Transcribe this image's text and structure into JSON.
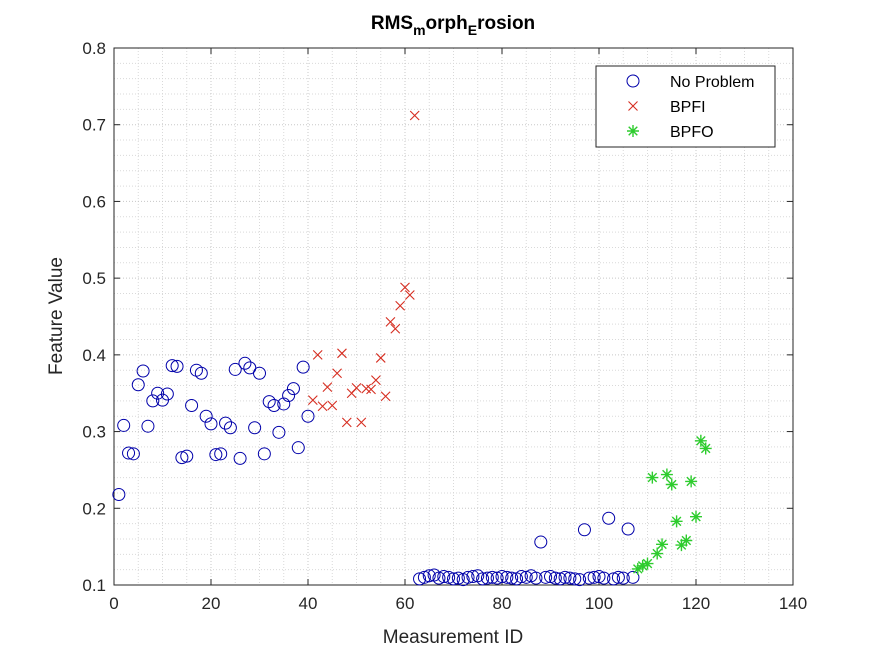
{
  "chart_data": {
    "type": "scatter",
    "title": "RMS_morph_Erosion",
    "title_parts": {
      "a": "RMS",
      "b": "m",
      "c": "orph",
      "d": "E",
      "e": "rosion"
    },
    "xlabel": "Measurement ID",
    "ylabel": "Feature Value",
    "xlim": [
      0,
      140
    ],
    "ylim": [
      0.1,
      0.8
    ],
    "xticks": [
      0,
      20,
      40,
      60,
      80,
      100,
      120,
      140
    ],
    "yticks": [
      0.1,
      0.2,
      0.3,
      0.4,
      0.5,
      0.6,
      0.7,
      0.8
    ],
    "xtick_labels": [
      "0",
      "20",
      "40",
      "60",
      "80",
      "100",
      "120",
      "140"
    ],
    "ytick_labels": [
      "0.1",
      "0.2",
      "0.3",
      "0.4",
      "0.5",
      "0.6",
      "0.7",
      "0.8"
    ],
    "grid": true,
    "minor_grid": true,
    "legend_position": "top-right",
    "series": [
      {
        "name": "No Problem",
        "marker": "circle",
        "color": "#0000aa",
        "x": [
          1,
          2,
          3,
          4,
          5,
          6,
          7,
          8,
          9,
          10,
          11,
          12,
          13,
          14,
          15,
          16,
          17,
          18,
          19,
          20,
          21,
          22,
          23,
          24,
          25,
          26,
          27,
          28,
          29,
          30,
          31,
          32,
          33,
          34,
          35,
          36,
          37,
          38,
          39,
          40,
          63,
          64,
          65,
          66,
          67,
          68,
          69,
          70,
          71,
          72,
          73,
          74,
          75,
          76,
          77,
          78,
          79,
          80,
          81,
          82,
          83,
          84,
          85,
          86,
          87,
          88,
          89,
          90,
          91,
          92,
          93,
          94,
          95,
          96,
          97,
          98,
          99,
          100,
          101,
          102,
          103,
          104,
          105,
          106,
          107
        ],
        "y": [
          0.218,
          0.308,
          0.272,
          0.271,
          0.361,
          0.379,
          0.307,
          0.34,
          0.35,
          0.341,
          0.349,
          0.386,
          0.385,
          0.266,
          0.268,
          0.334,
          0.38,
          0.376,
          0.32,
          0.31,
          0.27,
          0.271,
          0.311,
          0.305,
          0.381,
          0.265,
          0.389,
          0.383,
          0.305,
          0.376,
          0.271,
          0.339,
          0.334,
          0.299,
          0.336,
          0.347,
          0.356,
          0.279,
          0.384,
          0.32,
          0.108,
          0.11,
          0.112,
          0.113,
          0.109,
          0.111,
          0.11,
          0.108,
          0.109,
          0.107,
          0.11,
          0.111,
          0.112,
          0.108,
          0.109,
          0.11,
          0.109,
          0.111,
          0.11,
          0.109,
          0.108,
          0.111,
          0.11,
          0.112,
          0.109,
          0.156,
          0.11,
          0.111,
          0.109,
          0.108,
          0.11,
          0.109,
          0.108,
          0.107,
          0.172,
          0.109,
          0.11,
          0.111,
          0.109,
          0.187,
          0.108,
          0.11,
          0.109,
          0.173,
          0.11
        ]
      },
      {
        "name": "BPFI",
        "marker": "x",
        "color": "#d62d20",
        "x": [
          41,
          42,
          43,
          44,
          45,
          46,
          47,
          48,
          49,
          50,
          51,
          52,
          53,
          54,
          55,
          56,
          57,
          58,
          59,
          60,
          61,
          62
        ],
        "y": [
          0.341,
          0.4,
          0.333,
          0.358,
          0.334,
          0.376,
          0.402,
          0.312,
          0.35,
          0.357,
          0.312,
          0.356,
          0.355,
          0.367,
          0.396,
          0.346,
          0.443,
          0.434,
          0.464,
          0.488,
          0.478,
          0.712
        ]
      },
      {
        "name": "BPFO",
        "marker": "star",
        "color": "#2ecc2e",
        "x": [
          108,
          109,
          110,
          111,
          112,
          113,
          114,
          115,
          116,
          117,
          118,
          119,
          120,
          121,
          122
        ],
        "y": [
          0.121,
          0.125,
          0.128,
          0.24,
          0.141,
          0.153,
          0.244,
          0.231,
          0.183,
          0.152,
          0.158,
          0.235,
          0.189,
          0.288,
          0.278
        ]
      }
    ]
  }
}
